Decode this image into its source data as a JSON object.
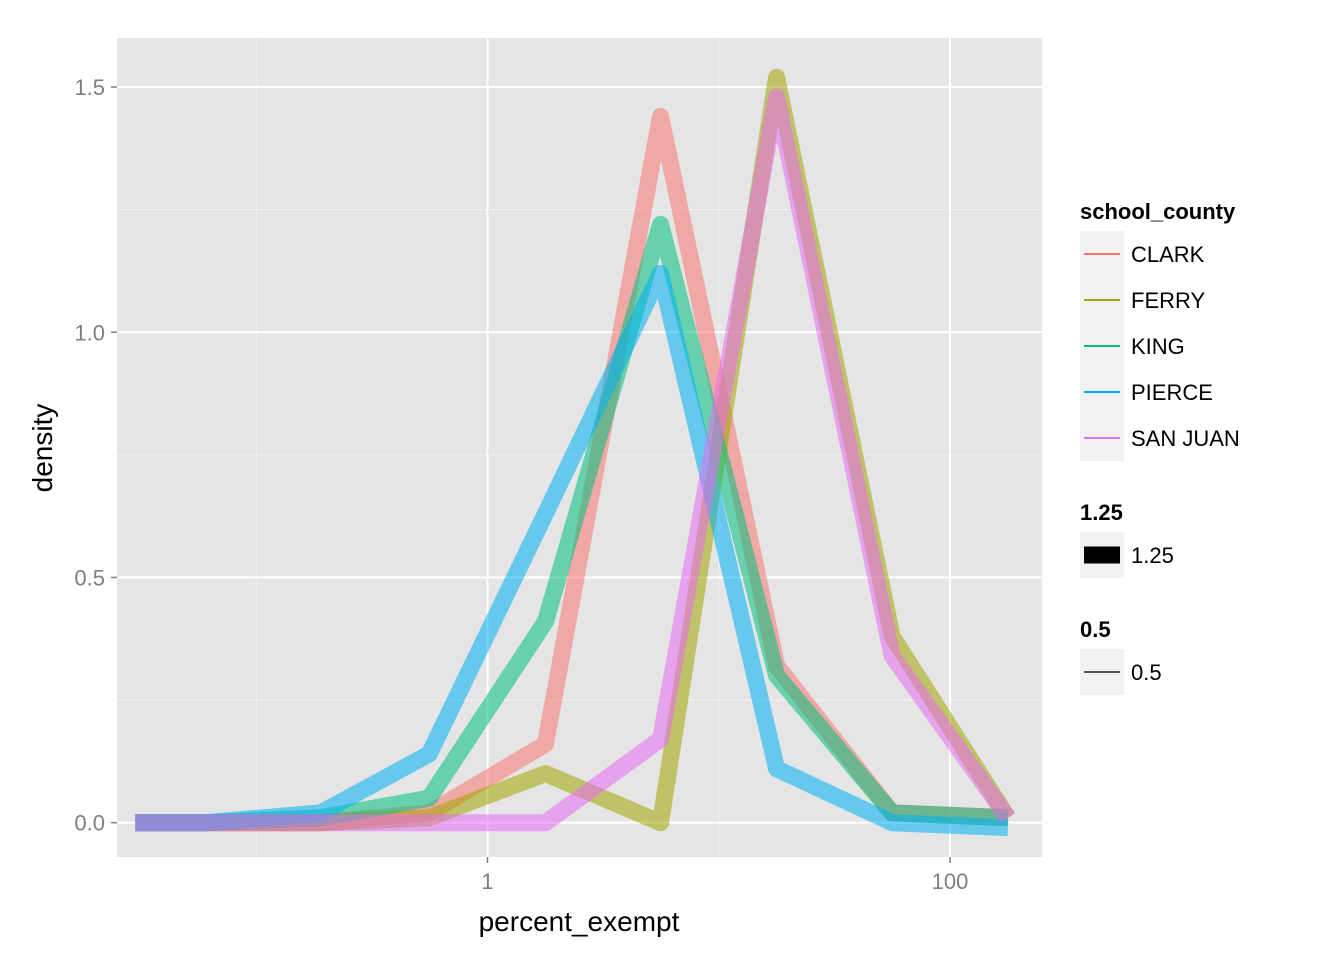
{
  "chart_data": {
    "type": "line",
    "xlabel": "percent_exempt",
    "ylabel": "density",
    "x_scale": "log10",
    "xlim": [
      0.025,
      250
    ],
    "ylim": [
      -0.07,
      1.6
    ],
    "x_ticks": [
      {
        "value": 1,
        "label": "1"
      },
      {
        "value": 100,
        "label": "100"
      }
    ],
    "x_minor_ticks": [
      0.1,
      10
    ],
    "y_ticks": [
      {
        "value": 0.0,
        "label": "0.0"
      },
      {
        "value": 0.5,
        "label": "0.5"
      },
      {
        "value": 1.0,
        "label": "1.0"
      },
      {
        "value": 1.5,
        "label": "1.5"
      }
    ],
    "y_minor_ticks": [
      0.25,
      0.75,
      1.25
    ],
    "panel_background": "#e5e5e5",
    "grid": true,
    "legend_position": "right",
    "series": [
      {
        "name": "CLARK",
        "color": "#f8766d",
        "x": [
          0.03,
          0.06,
          0.19,
          0.56,
          1.78,
          5.6,
          17.8,
          56.2,
          178
        ],
        "y": [
          0,
          0,
          0,
          0.02,
          0.16,
          1.44,
          0.32,
          0.02,
          0.01
        ]
      },
      {
        "name": "FERRY",
        "color": "#a3a500",
        "x": [
          0.03,
          0.06,
          0.19,
          0.56,
          1.78,
          5.6,
          17.8,
          56.2,
          178
        ],
        "y": [
          0,
          0,
          0,
          0.01,
          0.1,
          0,
          1.52,
          0.38,
          0.01
        ]
      },
      {
        "name": "KING",
        "color": "#00bf7d",
        "x": [
          0.03,
          0.06,
          0.19,
          0.56,
          1.78,
          5.6,
          17.8,
          56.2,
          178
        ],
        "y": [
          0,
          0,
          0.01,
          0.05,
          0.41,
          1.22,
          0.3,
          0.02,
          0.01
        ]
      },
      {
        "name": "PIERCE",
        "color": "#00b0f6",
        "x": [
          0.03,
          0.06,
          0.19,
          0.56,
          1.78,
          5.6,
          17.8,
          56.2,
          178
        ],
        "y": [
          0,
          0,
          0.02,
          0.14,
          0.63,
          1.12,
          0.11,
          0,
          -0.01
        ]
      },
      {
        "name": "SAN JUAN",
        "color": "#e76bf3",
        "x": [
          0.03,
          0.06,
          0.19,
          0.56,
          1.78,
          5.6,
          17.8,
          56.2,
          178
        ],
        "y": [
          0,
          0,
          0,
          0,
          0,
          0.17,
          1.48,
          0.34,
          0.01
        ]
      }
    ],
    "line_alpha": 0.55,
    "legends": [
      {
        "title": "school_county",
        "entries": [
          "CLARK",
          "FERRY",
          "KING",
          "PIERCE",
          "SAN JUAN"
        ]
      },
      {
        "title": "1.25",
        "entries": [
          "1.25"
        ]
      },
      {
        "title": "0.5",
        "entries": [
          "0.5"
        ]
      }
    ]
  }
}
